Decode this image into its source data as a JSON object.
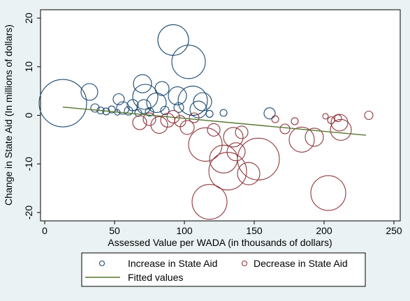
{
  "chart_data": {
    "type": "scatter",
    "title": "",
    "xlabel": "Assessed Value per WADA (in thousands of dollars)",
    "ylabel": "Change in State Aid (In millions of dollars)",
    "xlim": [
      0,
      250
    ],
    "ylim": [
      -20,
      20
    ],
    "xticks": [
      0,
      50,
      100,
      150,
      200,
      250
    ],
    "yticks": [
      -20,
      -10,
      0,
      10,
      20
    ],
    "grid": false,
    "legend_position": "bottom",
    "series": [
      {
        "name": "Increase in State Aid",
        "marker": "hollow-circle",
        "color": "#1a476f",
        "points": [
          {
            "x": 13,
            "y": 2.5,
            "size": 34
          },
          {
            "x": 32,
            "y": 4.8,
            "size": 12
          },
          {
            "x": 36,
            "y": 1.5,
            "size": 6
          },
          {
            "x": 40,
            "y": 1.0,
            "size": 5
          },
          {
            "x": 44,
            "y": 0.8,
            "size": 5
          },
          {
            "x": 48,
            "y": 1.2,
            "size": 5
          },
          {
            "x": 52,
            "y": 0.6,
            "size": 4
          },
          {
            "x": 53,
            "y": 3.3,
            "size": 8
          },
          {
            "x": 56,
            "y": 1.5,
            "size": 9
          },
          {
            "x": 60,
            "y": 0.9,
            "size": 6
          },
          {
            "x": 63,
            "y": 2.1,
            "size": 8
          },
          {
            "x": 67,
            "y": 0.5,
            "size": 5
          },
          {
            "x": 70,
            "y": 6.5,
            "size": 13
          },
          {
            "x": 71,
            "y": 1.8,
            "size": 10
          },
          {
            "x": 72,
            "y": 3.8,
            "size": 18
          },
          {
            "x": 75,
            "y": 0.7,
            "size": 6
          },
          {
            "x": 80,
            "y": 2.6,
            "size": 14
          },
          {
            "x": 84,
            "y": 5.5,
            "size": 10
          },
          {
            "x": 86,
            "y": 1.0,
            "size": 6
          },
          {
            "x": 92,
            "y": 15.5,
            "size": 22
          },
          {
            "x": 95,
            "y": 4.0,
            "size": 13
          },
          {
            "x": 96,
            "y": 1.6,
            "size": 7
          },
          {
            "x": 103,
            "y": 11.0,
            "size": 24
          },
          {
            "x": 106,
            "y": 3.0,
            "size": 21
          },
          {
            "x": 110,
            "y": 1.2,
            "size": 12
          },
          {
            "x": 113,
            "y": 2.8,
            "size": 13
          },
          {
            "x": 118,
            "y": 0.3,
            "size": 5
          },
          {
            "x": 128,
            "y": 0.5,
            "size": 5
          },
          {
            "x": 161,
            "y": 0.4,
            "size": 8
          }
        ]
      },
      {
        "name": "Decrease in State Aid",
        "marker": "hollow-circle",
        "color": "#90353b",
        "points": [
          {
            "x": 68,
            "y": -1.5,
            "size": 10
          },
          {
            "x": 75,
            "y": -0.8,
            "size": 9
          },
          {
            "x": 82,
            "y": -2.0,
            "size": 12
          },
          {
            "x": 88,
            "y": -1.0,
            "size": 10
          },
          {
            "x": 92,
            "y": -0.3,
            "size": 9
          },
          {
            "x": 97,
            "y": -1.2,
            "size": 8
          },
          {
            "x": 102,
            "y": -2.5,
            "size": 10
          },
          {
            "x": 107,
            "y": -0.5,
            "size": 7
          },
          {
            "x": 115,
            "y": -6.0,
            "size": 24
          },
          {
            "x": 118,
            "y": -17.8,
            "size": 25
          },
          {
            "x": 121,
            "y": -3.0,
            "size": 9
          },
          {
            "x": 128,
            "y": -9.0,
            "size": 20
          },
          {
            "x": 131,
            "y": -11.5,
            "size": 27
          },
          {
            "x": 135,
            "y": -4.5,
            "size": 14
          },
          {
            "x": 137,
            "y": -7.5,
            "size": 13
          },
          {
            "x": 141,
            "y": -3.5,
            "size": 9
          },
          {
            "x": 146,
            "y": -12.0,
            "size": 16
          },
          {
            "x": 153,
            "y": -9.0,
            "size": 30
          },
          {
            "x": 165,
            "y": -0.8,
            "size": 5
          },
          {
            "x": 172,
            "y": -2.8,
            "size": 7
          },
          {
            "x": 179,
            "y": -1.2,
            "size": 5
          },
          {
            "x": 184,
            "y": -5.0,
            "size": 18
          },
          {
            "x": 193,
            "y": -4.5,
            "size": 13
          },
          {
            "x": 201,
            "y": -0.2,
            "size": 4
          },
          {
            "x": 203,
            "y": -16.0,
            "size": 25
          },
          {
            "x": 205,
            "y": -1.0,
            "size": 5
          },
          {
            "x": 210,
            "y": -0.6,
            "size": 5
          },
          {
            "x": 211,
            "y": -1.5,
            "size": 12
          },
          {
            "x": 212,
            "y": -3.0,
            "size": 15
          },
          {
            "x": 232,
            "y": 0.0,
            "size": 6
          }
        ]
      },
      {
        "name": "Fitted values",
        "marker": "line",
        "color": "#55752f",
        "points": [
          {
            "x": 13,
            "y": 1.7
          },
          {
            "x": 230,
            "y": -4.1
          }
        ]
      }
    ],
    "legend": {
      "items": [
        {
          "label": "Increase in State Aid"
        },
        {
          "label": "Decrease in State Aid"
        },
        {
          "label": "Fitted values"
        }
      ]
    },
    "colors": {
      "background": "#eaf2f3",
      "plot_area": "#ffffff",
      "increase": "#1a476f",
      "decrease": "#90353b",
      "fitted": "#55752f"
    }
  }
}
